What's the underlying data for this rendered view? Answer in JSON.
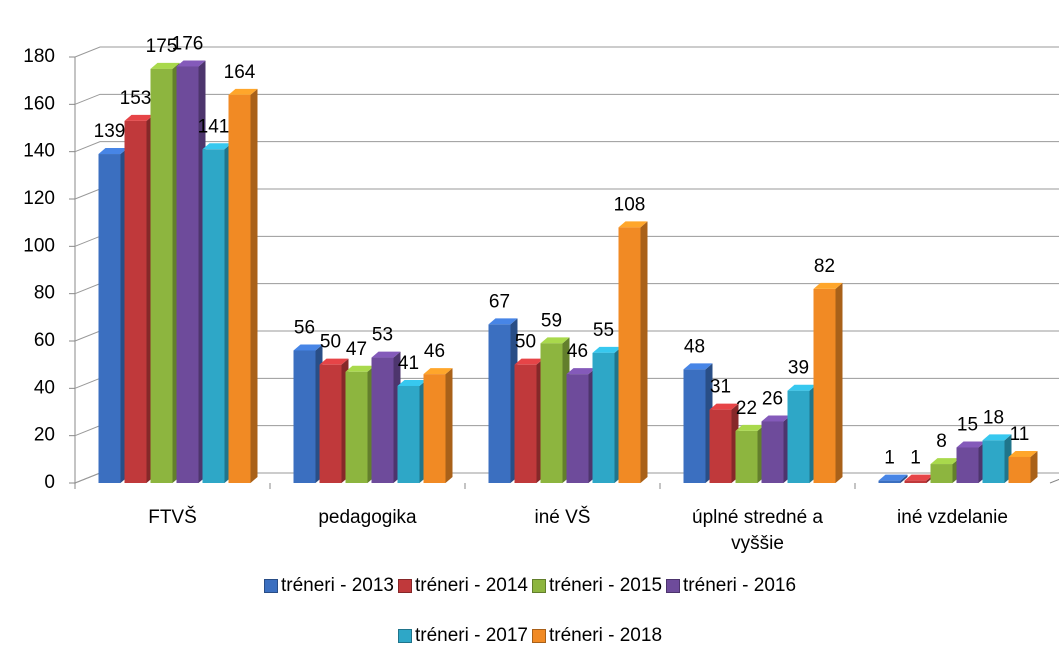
{
  "chart_data": {
    "type": "bar",
    "categories": [
      "FTVŠ",
      "pedagogika",
      "iné VŠ",
      "úplné stredné a vyššie",
      "iné vzdelanie"
    ],
    "series": [
      {
        "name": "tréneri - 2013",
        "color": "#3b6fc0",
        "values": [
          139,
          56,
          67,
          48,
          1
        ]
      },
      {
        "name": "tréneri - 2014",
        "color": "#c0393b",
        "values": [
          153,
          50,
          50,
          31,
          1
        ]
      },
      {
        "name": "tréneri - 2015",
        "color": "#8db53f",
        "values": [
          175,
          47,
          59,
          22,
          8
        ]
      },
      {
        "name": "tréneri - 2016",
        "color": "#6e4b9b",
        "values": [
          176,
          53,
          46,
          26,
          15
        ]
      },
      {
        "name": "tréneri - 2017",
        "color": "#2ea7c7",
        "values": [
          141,
          41,
          55,
          39,
          18
        ]
      },
      {
        "name": "tréneri - 2018",
        "color": "#f18a24",
        "values": [
          164,
          46,
          108,
          82,
          11
        ]
      }
    ],
    "ylim": [
      0,
      180
    ],
    "yticks": [
      0,
      20,
      40,
      60,
      80,
      100,
      120,
      140,
      160,
      180
    ],
    "grid": true,
    "legend": "bottom"
  }
}
